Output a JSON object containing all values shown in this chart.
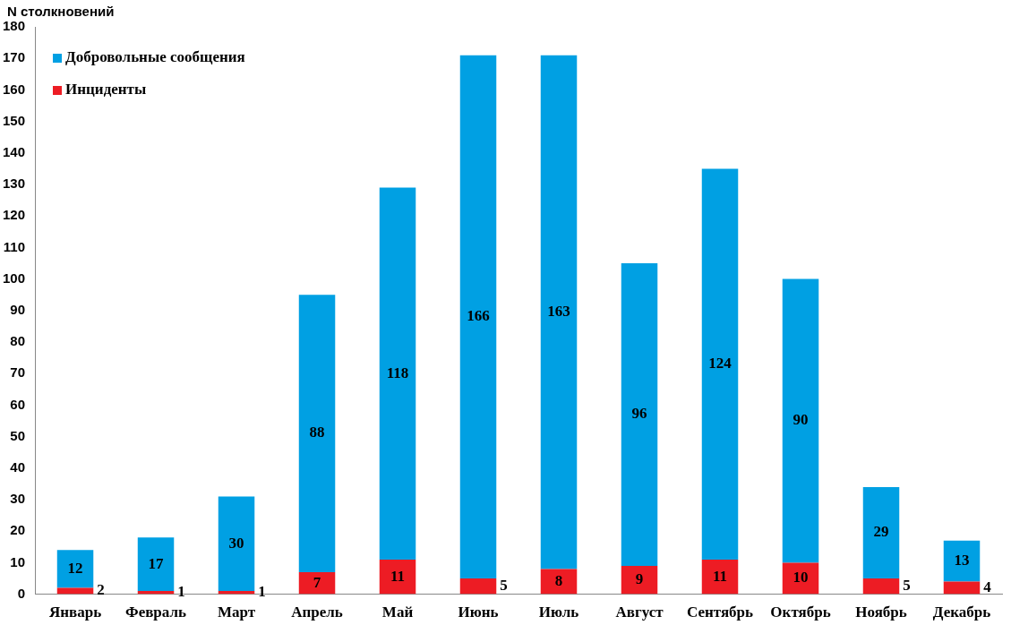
{
  "chart_data": {
    "type": "bar",
    "ylabel": "N столкновений",
    "stacked": true,
    "data_labels": true,
    "legend": "top left",
    "grid": false,
    "categories": [
      "Январь",
      "Февраль",
      "Март",
      "Апрель",
      "Май",
      "Июнь",
      "Июль",
      "Август",
      "Сентябрь",
      "Октябрь",
      "Ноябрь",
      "Декабрь"
    ],
    "ylim": [
      0,
      180
    ],
    "yticks": [
      0,
      10,
      20,
      30,
      40,
      50,
      60,
      70,
      80,
      90,
      100,
      110,
      120,
      130,
      140,
      150,
      160,
      170,
      180
    ],
    "series": [
      {
        "name": "Инциденты",
        "color": "#ed1c24",
        "values": [
          2,
          1,
          1,
          7,
          11,
          5,
          8,
          9,
          11,
          10,
          5,
          4
        ]
      },
      {
        "name": "Добровольные сообщения",
        "color": "#00a0e3",
        "values": [
          12,
          17,
          30,
          88,
          118,
          166,
          163,
          96,
          124,
          90,
          29,
          13
        ]
      }
    ]
  }
}
